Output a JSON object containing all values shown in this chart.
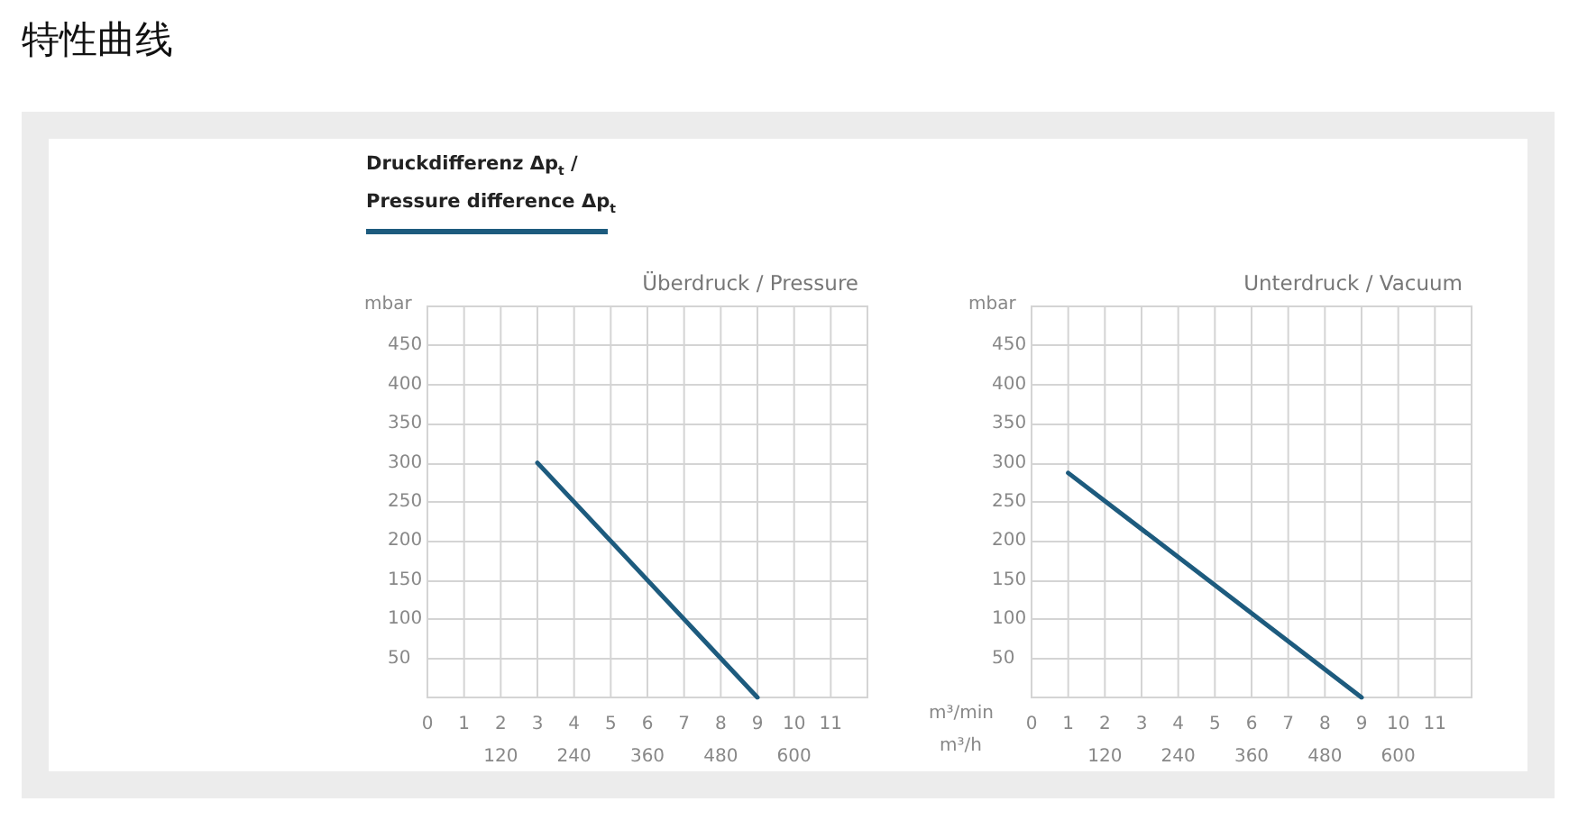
{
  "chart_data": [
    {
      "type": "line",
      "title": "Überdruck / Pressure",
      "annotations": [
        "特性曲线"
      ],
      "ylabel": "mbar",
      "legend": "top left",
      "series": [
        {
          "name": "Druckdifferenz Δp$_{t}$ / Pressure difference Δp$_{t}$",
          "color": "#1d5b7e",
          "x": [
            3,
            9
          ],
          "values": [
            300,
            0
          ]
        }
      ],
      "xlim": [
        0,
        12
      ],
      "xticks": [
        0,
        1,
        2,
        3,
        4,
        5,
        6,
        7,
        8,
        9,
        10,
        11
      ],
      "x2lim": [
        0,
        720
      ],
      "x2ticks": [
        120,
        240,
        360,
        480,
        600
      ],
      "ylim": [
        0,
        500
      ],
      "yticks": [
        50,
        100,
        150,
        200,
        250,
        300,
        350,
        400,
        450
      ],
      "grid": true
    },
    {
      "type": "line",
      "title": "Unterdruck / Vacuum",
      "ylabel": "mbar",
      "xlabel": "m³/min",
      "x2label": "m³/h",
      "series": [
        {
          "color": "#1d5b7e",
          "x": [
            1,
            9
          ],
          "values": [
            287,
            0
          ]
        }
      ],
      "xlim": [
        0,
        12
      ],
      "xticks": [
        0,
        1,
        2,
        3,
        4,
        5,
        6,
        7,
        8,
        9,
        10,
        11
      ],
      "x2lim": [
        0,
        720
      ],
      "x2ticks": [
        120,
        240,
        360,
        480,
        600
      ],
      "ylim": [
        0,
        500
      ],
      "yticks": [
        50,
        100,
        150,
        200,
        250,
        300,
        350,
        400,
        450
      ],
      "grid": true
    }
  ]
}
